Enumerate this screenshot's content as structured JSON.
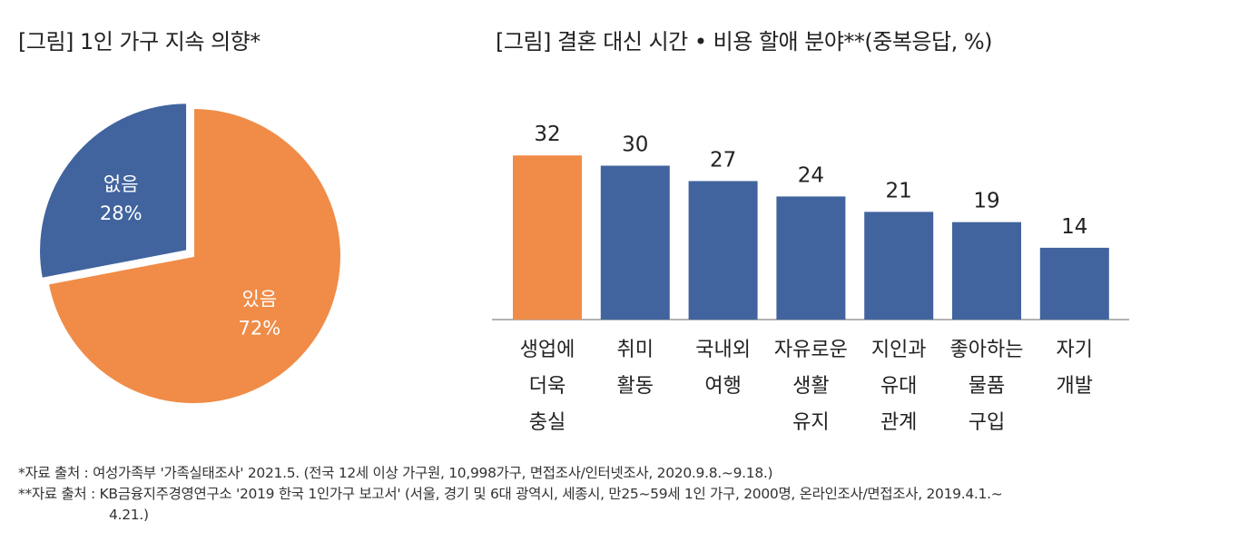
{
  "chart_data": [
    {
      "type": "pie",
      "title": "[그림] 1인 가구 지속 의향*",
      "slices": [
        {
          "label": "있음",
          "value": 72,
          "value_label": "72%",
          "color": "#F08C47"
        },
        {
          "label": "없음",
          "value": 28,
          "value_label": "28%",
          "color": "#41649E"
        }
      ]
    },
    {
      "type": "bar",
      "title": "[그림] 결혼 대신 시간 • 비용 할애 분야**(중복응답, %)",
      "categories": [
        [
          "생업에",
          "더욱",
          "충실"
        ],
        [
          "취미",
          "활동"
        ],
        [
          "국내외",
          "여행"
        ],
        [
          "자유로운",
          "생활",
          "유지"
        ],
        [
          "지인과",
          "유대",
          "관계"
        ],
        [
          "좋아하는",
          "물품",
          "구입"
        ],
        [
          "자기",
          "개발"
        ]
      ],
      "values": [
        32,
        30,
        27,
        24,
        21,
        19,
        14
      ],
      "colors": [
        "#F08C47",
        "#41649E",
        "#41649E",
        "#41649E",
        "#41649E",
        "#41649E",
        "#41649E"
      ],
      "ylim": [
        0,
        35
      ]
    }
  ],
  "notes": {
    "line1": "*자료 출처 : 여성가족부 '가족실태조사' 2021.5. (전국 12세 이상 가구원, 10,998가구, 면접조사/인터넷조사, 2020.9.8.~9.18.)",
    "line2": "**자료 출처 : KB금융지주경영연구소 '2019 한국 1인가구 보고서' (서울, 경기 및 6대 광역시, 세종시, 만25~59세 1인 가구, 2000명, 온라인조사/면접조사, 2019.4.1.~",
    "line3": "4.21.)"
  }
}
